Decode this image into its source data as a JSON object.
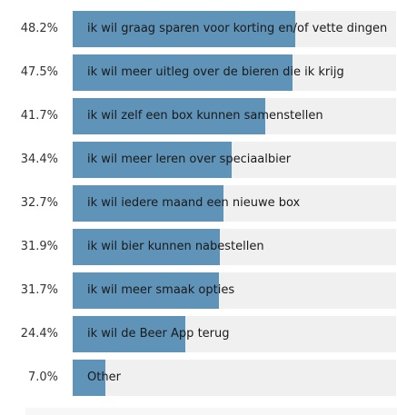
{
  "chart_data": {
    "type": "bar",
    "orientation": "horizontal",
    "categories": [
      "ik wil graag sparen voor korting en/of vette dingen",
      "ik wil meer uitleg over de bieren die ik krijg",
      "ik wil zelf een box kunnen samenstellen",
      "ik wil meer leren over speciaalbier",
      "ik wil iedere maand een nieuwe box",
      "ik wil bier kunnen nabestellen",
      "ik wil meer smaak opties",
      "ik wil de Beer App terug",
      "Other"
    ],
    "values": [
      48.2,
      47.5,
      41.7,
      34.4,
      32.7,
      31.9,
      31.7,
      24.4,
      7.0
    ],
    "value_labels": [
      "48.2%",
      "47.5%",
      "41.7%",
      "34.4%",
      "32.7%",
      "31.9%",
      "31.7%",
      "24.4%",
      "7.0%"
    ],
    "xlim": [
      0,
      70
    ],
    "bar_color": "#5f93b8",
    "track_color": "#f0f0f0",
    "grid": false
  }
}
